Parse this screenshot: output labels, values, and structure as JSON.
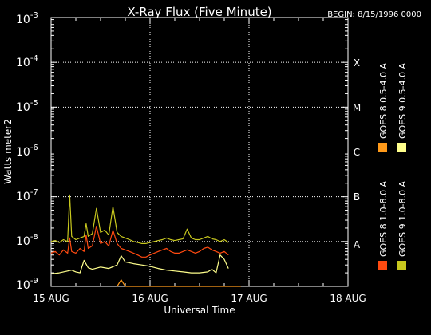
{
  "title": "X-Ray Flux (Five Minute)",
  "begin_label": "BEGIN: 8/15/1996 0000",
  "colors": {
    "background": "#000000",
    "foreground": "#ffffff",
    "goes8_long": "#ff4a10",
    "goes8_short": "#ff9a1a",
    "goes9_long": "#c8c81e",
    "goes9_short": "#ffff8c"
  },
  "chart_data": {
    "type": "line",
    "title": "X-Ray Flux (Five Minute)",
    "xlabel": "Universal Time",
    "ylabel": "Watts meter2",
    "y_scale": "log",
    "ylim": [
      1e-09,
      0.001
    ],
    "xlim": [
      "1996-08-15 00:00",
      "1996-08-18 00:00"
    ],
    "x_ticks": [
      "15 AUG",
      "16 AUG",
      "17 AUG",
      "18 AUG"
    ],
    "y_ticks": [
      {
        "base": "10",
        "exp": "-3"
      },
      {
        "base": "10",
        "exp": "-4"
      },
      {
        "base": "10",
        "exp": "-5"
      },
      {
        "base": "10",
        "exp": "-6"
      },
      {
        "base": "10",
        "exp": "-7"
      },
      {
        "base": "10",
        "exp": "-8"
      },
      {
        "base": "10",
        "exp": "-9"
      }
    ],
    "flare_classes": [
      {
        "label": "X",
        "level": 0.0001
      },
      {
        "label": "M",
        "level": 1e-05
      },
      {
        "label": "C",
        "level": 1e-06
      },
      {
        "label": "B",
        "level": 1e-07
      },
      {
        "label": "A",
        "level": 1e-08
      }
    ],
    "grid": "dotted, at 16 AUG, 17 AUG and each decade",
    "legend_position": "right, vertical",
    "series": [
      {
        "name": "GOES 8 1.0-8.0 A",
        "color": "#ff4a10",
        "x": [
          "1996-08-15 00:00",
          "1996-08-15 01:00",
          "1996-08-15 02:00",
          "1996-08-15 03:00",
          "1996-08-15 04:00",
          "1996-08-15 04:30",
          "1996-08-15 05:00",
          "1996-08-15 06:00",
          "1996-08-15 07:00",
          "1996-08-15 08:00",
          "1996-08-15 08:30",
          "1996-08-15 09:00",
          "1996-08-15 10:00",
          "1996-08-15 11:00",
          "1996-08-15 12:00",
          "1996-08-15 13:00",
          "1996-08-15 14:00",
          "1996-08-15 15:00",
          "1996-08-15 16:00",
          "1996-08-15 17:00",
          "1996-08-15 18:00",
          "1996-08-15 19:00",
          "1996-08-15 20:00",
          "1996-08-15 21:00",
          "1996-08-15 22:00",
          "1996-08-15 23:00",
          "1996-08-16 00:00",
          "1996-08-16 01:00",
          "1996-08-16 02:00",
          "1996-08-16 03:00",
          "1996-08-16 04:00",
          "1996-08-16 05:00",
          "1996-08-16 06:00",
          "1996-08-16 07:00",
          "1996-08-16 08:00",
          "1996-08-16 09:00",
          "1996-08-16 10:00",
          "1996-08-16 11:00",
          "1996-08-16 12:00",
          "1996-08-16 13:00",
          "1996-08-16 14:00",
          "1996-08-16 15:00",
          "1996-08-16 16:00",
          "1996-08-16 17:00",
          "1996-08-16 18:00",
          "1996-08-16 19:00"
        ],
        "y": [
          5.5e-09,
          6e-09,
          5e-09,
          6.5e-09,
          5.5e-09,
          1.2e-08,
          6e-09,
          5.5e-09,
          7e-09,
          6e-09,
          1.4e-08,
          7e-09,
          8e-09,
          2.2e-08,
          9e-09,
          1e-08,
          8e-09,
          1.8e-08,
          9e-09,
          7e-09,
          6.5e-09,
          6e-09,
          5.5e-09,
          5e-09,
          4.5e-09,
          4.5e-09,
          5e-09,
          5.5e-09,
          6e-09,
          6.5e-09,
          7e-09,
          6e-09,
          5.5e-09,
          5.5e-09,
          6e-09,
          6.5e-09,
          6e-09,
          5.5e-09,
          6e-09,
          7e-09,
          7.5e-09,
          6.5e-09,
          6e-09,
          5.5e-09,
          6e-09,
          5e-09
        ]
      },
      {
        "name": "GOES 8 0.5-4.0 A",
        "color": "#ff9a1a",
        "x": [
          "1996-08-15 16:00",
          "1996-08-15 17:00",
          "1996-08-15 18:00",
          "1996-08-16 22:00"
        ],
        "y": [
          1e-09,
          1.4e-09,
          1e-09,
          1e-09
        ]
      },
      {
        "name": "GOES 9 1.0-8.0 A",
        "color": "#c8c81e",
        "x": [
          "1996-08-15 00:00",
          "1996-08-15 01:00",
          "1996-08-15 02:00",
          "1996-08-15 03:00",
          "1996-08-15 04:00",
          "1996-08-15 04:30",
          "1996-08-15 05:00",
          "1996-08-15 06:00",
          "1996-08-15 07:00",
          "1996-08-15 08:00",
          "1996-08-15 08:30",
          "1996-08-15 09:00",
          "1996-08-15 10:00",
          "1996-08-15 11:00",
          "1996-08-15 12:00",
          "1996-08-15 13:00",
          "1996-08-15 14:00",
          "1996-08-15 15:00",
          "1996-08-15 16:00",
          "1996-08-15 17:00",
          "1996-08-15 18:00",
          "1996-08-15 19:00",
          "1996-08-15 20:00",
          "1996-08-15 21:00",
          "1996-08-15 22:00",
          "1996-08-15 23:00",
          "1996-08-16 00:00",
          "1996-08-16 01:00",
          "1996-08-16 02:00",
          "1996-08-16 03:00",
          "1996-08-16 04:00",
          "1996-08-16 05:00",
          "1996-08-16 06:00",
          "1996-08-16 07:00",
          "1996-08-16 08:00",
          "1996-08-16 09:00",
          "1996-08-16 10:00",
          "1996-08-16 11:00",
          "1996-08-16 12:00",
          "1996-08-16 13:00",
          "1996-08-16 14:00",
          "1996-08-16 15:00",
          "1996-08-16 16:00",
          "1996-08-16 17:00",
          "1996-08-16 18:00",
          "1996-08-16 19:00"
        ],
        "y": [
          1e-08,
          1.05e-08,
          9.5e-09,
          1.1e-08,
          1e-08,
          1.1e-07,
          1.3e-08,
          1.1e-08,
          1.2e-08,
          1.3e-08,
          2.5e-08,
          1.3e-08,
          1.5e-08,
          5.5e-08,
          1.6e-08,
          1.8e-08,
          1.4e-08,
          6e-08,
          1.6e-08,
          1.3e-08,
          1.2e-08,
          1.1e-08,
          1e-08,
          9.5e-09,
          9e-09,
          9e-09,
          9.5e-09,
          1e-08,
          1.05e-08,
          1.1e-08,
          1.2e-08,
          1.1e-08,
          1.05e-08,
          1.1e-08,
          1.15e-08,
          1.9e-08,
          1.2e-08,
          1.1e-08,
          1.1e-08,
          1.2e-08,
          1.3e-08,
          1.15e-08,
          1.1e-08,
          1e-08,
          1.1e-08,
          9.5e-09
        ]
      },
      {
        "name": "GOES 9 0.5-4.0 A",
        "color": "#ffff8c",
        "x": [
          "1996-08-15 00:00",
          "1996-08-15 02:00",
          "1996-08-15 04:00",
          "1996-08-15 05:00",
          "1996-08-15 06:00",
          "1996-08-15 07:00",
          "1996-08-15 08:00",
          "1996-08-15 09:00",
          "1996-08-15 10:00",
          "1996-08-15 12:00",
          "1996-08-15 14:00",
          "1996-08-15 16:00",
          "1996-08-15 17:00",
          "1996-08-15 18:00",
          "1996-08-15 20:00",
          "1996-08-15 22:00",
          "1996-08-16 00:00",
          "1996-08-16 02:00",
          "1996-08-16 04:00",
          "1996-08-16 06:00",
          "1996-08-16 08:00",
          "1996-08-16 10:00",
          "1996-08-16 12:00",
          "1996-08-16 14:00",
          "1996-08-16 15:00",
          "1996-08-16 16:00",
          "1996-08-16 17:00",
          "1996-08-16 18:00",
          "1996-08-16 19:00"
        ],
        "y": [
          1.9e-09,
          2e-09,
          2.2e-09,
          2.3e-09,
          2.1e-09,
          2e-09,
          3.8e-09,
          2.6e-09,
          2.4e-09,
          2.7e-09,
          2.5e-09,
          3e-09,
          4.8e-09,
          3.5e-09,
          3.2e-09,
          3e-09,
          2.8e-09,
          2.5e-09,
          2.3e-09,
          2.2e-09,
          2.1e-09,
          2e-09,
          2e-09,
          2.1e-09,
          2.4e-09,
          2e-09,
          5e-09,
          4e-09,
          2.5e-09
        ]
      }
    ]
  }
}
